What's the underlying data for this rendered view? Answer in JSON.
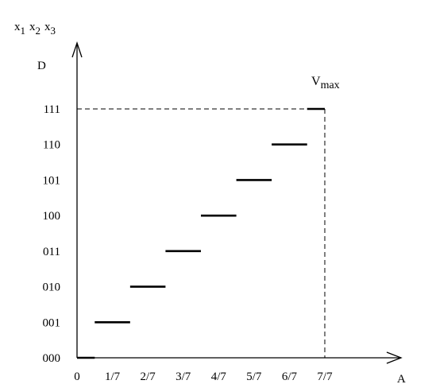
{
  "chart_data": {
    "type": "line",
    "y_axis_title": {
      "main": "x",
      "subs": [
        "1",
        "2",
        "3"
      ],
      "letter": "D"
    },
    "x_axis_title": "A",
    "x_tick_labels": [
      "0",
      "1/7",
      "2/7",
      "3/7",
      "4/7",
      "5/7",
      "6/7",
      "7/7"
    ],
    "y_tick_labels": [
      "000",
      "001",
      "010",
      "011",
      "100",
      "101",
      "110",
      "111"
    ],
    "xlim": [
      0,
      1
    ],
    "ylim": [
      0,
      7
    ],
    "series": [
      {
        "segments": [
          {
            "x": [
              0,
              0.0714
            ],
            "y": 0
          },
          {
            "x": [
              0.0714,
              0.2143
            ],
            "y": 1
          },
          {
            "x": [
              0.2143,
              0.3571
            ],
            "y": 2
          },
          {
            "x": [
              0.3571,
              0.5
            ],
            "y": 3
          },
          {
            "x": [
              0.5,
              0.6429
            ],
            "y": 4
          },
          {
            "x": [
              0.6429,
              0.7857
            ],
            "y": 5
          },
          {
            "x": [
              0.7857,
              0.9286
            ],
            "y": 6
          },
          {
            "x": [
              0.9286,
              1.0
            ],
            "y": 7
          }
        ]
      }
    ],
    "annotations": [
      {
        "text_main": "V",
        "text_sub": "max",
        "x": 1.0,
        "y": 7
      }
    ],
    "reference_lines": {
      "horizontal_y": 7,
      "vertical_x": 1.0,
      "style": "dashed"
    },
    "grid": false
  }
}
